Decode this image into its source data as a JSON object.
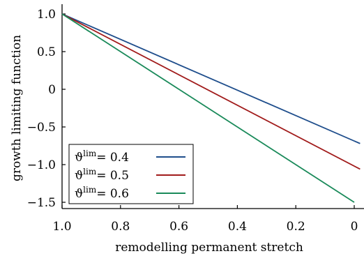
{
  "chart_data": {
    "type": "line",
    "xlabel": "remodelling permanent stretch",
    "ylabel": "growth limiting function",
    "xlim": [
      1.0,
      -0.02
    ],
    "ylim": [
      -1.5,
      1.0
    ],
    "x_reversed": true,
    "x_ticks": [
      1.0,
      0.8,
      0.6,
      0.4,
      0.2,
      0
    ],
    "x_tick_labels": [
      "1.0",
      "0.8",
      "0.6",
      "0.4",
      "0.2",
      "0"
    ],
    "y_ticks": [
      -1.5,
      -1.0,
      -0.5,
      0,
      0.5,
      1.0
    ],
    "y_tick_labels": [
      "−1.5",
      "−1.0",
      "−0.5",
      "0",
      "0.5",
      "1.0"
    ],
    "grid": false,
    "legend_position": "bottom-left",
    "series": [
      {
        "name": "ϑlim = 0.4",
        "symbol": "ϑ",
        "sup": "lim",
        "value_label": "= 0.4",
        "color": "#1f4e8c",
        "x": [
          1.0,
          -0.02
        ],
        "y": [
          1.0,
          -0.72
        ]
      },
      {
        "name": "ϑlim = 0.5",
        "symbol": "ϑ",
        "sup": "lim",
        "value_label": "= 0.5",
        "color": "#a11b1b",
        "x": [
          1.0,
          -0.02
        ],
        "y": [
          1.0,
          -1.06
        ]
      },
      {
        "name": "ϑlim = 0.6",
        "symbol": "ϑ",
        "sup": "lim",
        "value_label": "= 0.6",
        "color": "#1a8a5a",
        "x": [
          1.0,
          0.0
        ],
        "y": [
          1.0,
          -1.5
        ]
      }
    ]
  }
}
